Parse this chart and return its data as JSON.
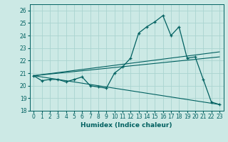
{
  "title": "",
  "xlabel": "Humidex (Indice chaleur)",
  "background_color": "#cce9e5",
  "grid_color": "#aad4d0",
  "line_color": "#006060",
  "xlim": [
    -0.5,
    23.5
  ],
  "ylim": [
    18.0,
    26.5
  ],
  "yticks": [
    18,
    19,
    20,
    21,
    22,
    23,
    24,
    25,
    26
  ],
  "xticks": [
    0,
    1,
    2,
    3,
    4,
    5,
    6,
    7,
    8,
    9,
    10,
    11,
    12,
    13,
    14,
    15,
    16,
    17,
    18,
    19,
    20,
    21,
    22,
    23
  ],
  "line1_x": [
    0,
    1,
    2,
    3,
    4,
    5,
    6,
    7,
    8,
    9,
    10,
    11,
    12,
    13,
    14,
    15,
    16,
    17,
    18,
    19,
    20,
    21,
    22,
    23
  ],
  "line1_y": [
    20.8,
    20.4,
    20.5,
    20.5,
    20.3,
    20.5,
    20.7,
    20.0,
    19.9,
    19.8,
    21.0,
    21.5,
    22.2,
    24.2,
    24.7,
    25.1,
    25.6,
    24.0,
    24.7,
    22.2,
    22.3,
    20.5,
    18.7,
    18.5
  ],
  "line2_x": [
    0,
    23
  ],
  "line2_y": [
    20.8,
    18.5
  ],
  "line3_x": [
    0,
    23
  ],
  "line3_y": [
    20.8,
    22.3
  ],
  "line4_x": [
    0,
    23
  ],
  "line4_y": [
    20.8,
    22.7
  ]
}
